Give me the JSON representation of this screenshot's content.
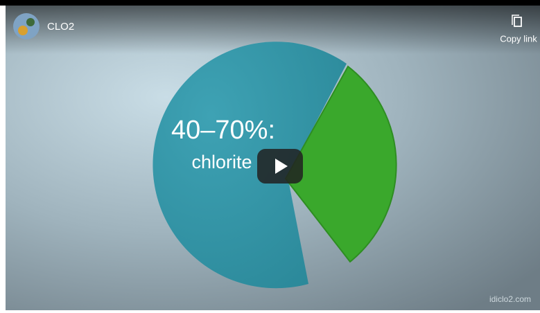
{
  "header": {
    "title": "CLO2",
    "action": "Copy link"
  },
  "video": {
    "headline": "40–70%:",
    "subject": "chlorite",
    "watermark": "idiclo2.com"
  }
}
